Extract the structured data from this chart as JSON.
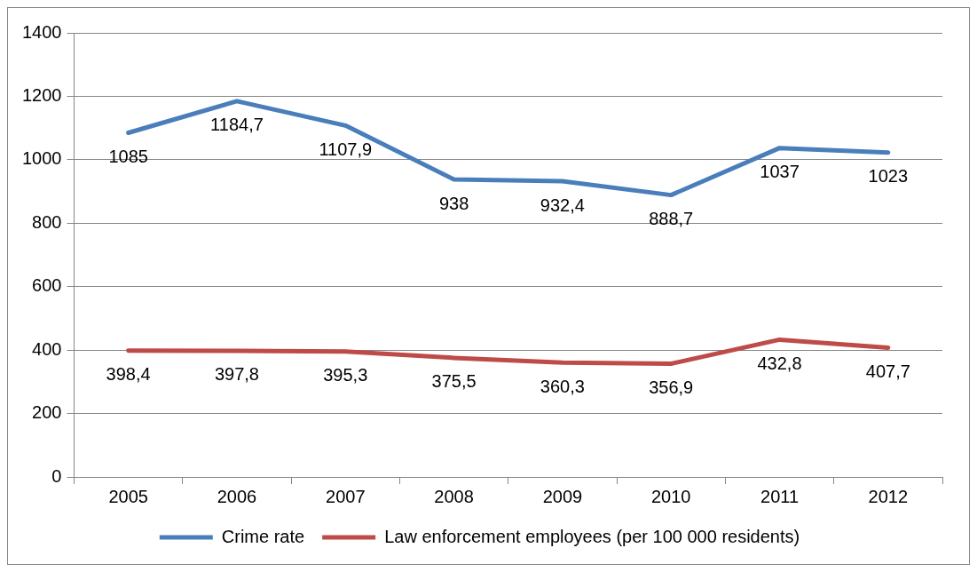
{
  "chart_data": {
    "type": "line",
    "categories": [
      "2005",
      "2006",
      "2007",
      "2008",
      "2009",
      "2010",
      "2011",
      "2012"
    ],
    "series": [
      {
        "name": "Crime rate",
        "color": "#4a7ebb",
        "values": [
          1085,
          1184.7,
          1107.9,
          938,
          932.4,
          888.7,
          1037,
          1023
        ],
        "value_labels": [
          "1085",
          "1184,7",
          "1107,9",
          "938",
          "932,4",
          "888,7",
          "1037",
          "1023"
        ]
      },
      {
        "name": "Law enforcement employees (per 100 000 residents)",
        "color": "#be4b48",
        "values": [
          398.4,
          397.8,
          395.3,
          375.5,
          360.3,
          356.9,
          432.8,
          407.7
        ],
        "value_labels": [
          "398,4",
          "397,8",
          "395,3",
          "375,5",
          "360,3",
          "356,9",
          "432,8",
          "407,7"
        ]
      }
    ],
    "ylim": [
      0,
      1400
    ],
    "yticks": [
      0,
      200,
      400,
      600,
      800,
      1000,
      1200,
      1400
    ],
    "grid": "y",
    "legend": "bottom",
    "marker": "none",
    "line_style": "solid"
  }
}
